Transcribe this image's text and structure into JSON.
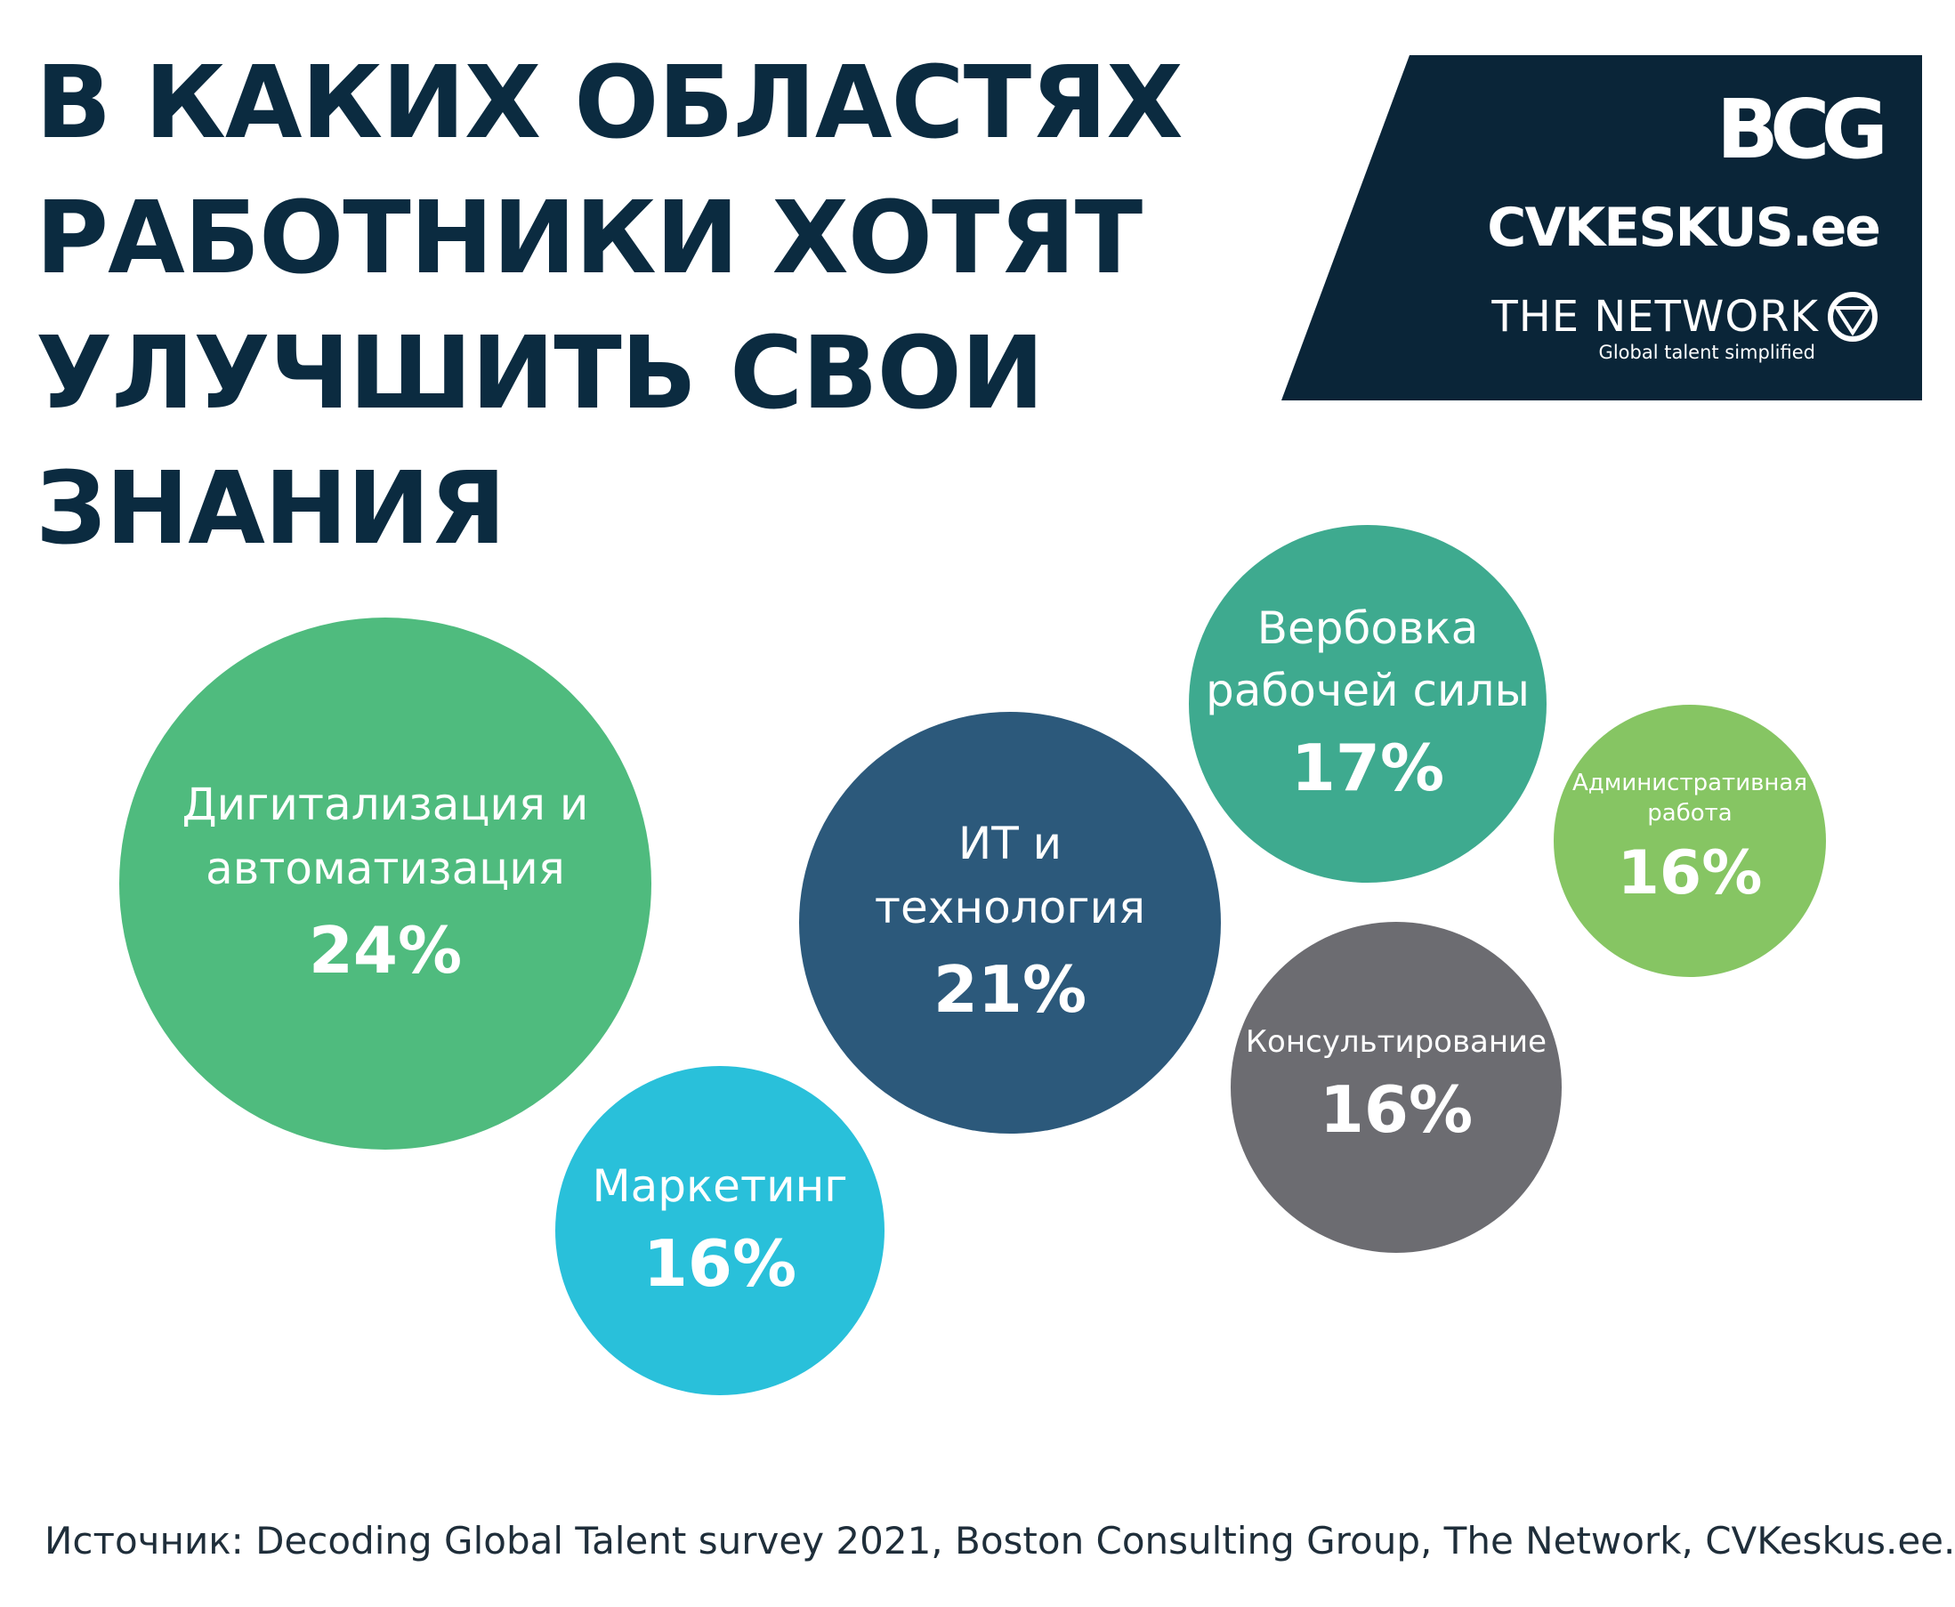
{
  "title_lines": [
    "В КАКИХ ОБЛАСТЯХ",
    "РАБОТНИКИ ХОТЯТ",
    "УЛУЧШИТЬ СВОИ",
    "ЗНАНИЯ"
  ],
  "brand": {
    "bcg": "BCG",
    "cvkeskus": "CVKESKUS.ee",
    "network_name": "THE NETWORK",
    "network_tagline": "Global talent simplified",
    "panel_color": "#0a2538"
  },
  "chart_data": {
    "type": "bubble",
    "title": "В КАКИХ ОБЛАСТЯХ РАБОТНИКИ ХОТЯТ УЛУЧШИТЬ СВОИ ЗНАНИЯ",
    "unit": "%",
    "items": [
      {
        "label": "Дигитализация и\nавтоматизация",
        "value": 24,
        "value_label": "24%",
        "color": "#4fbb7e"
      },
      {
        "label": "ИТ и\nтехнология",
        "value": 21,
        "value_label": "21%",
        "color": "#2c597b"
      },
      {
        "label": "Вербовка\nрабочей силы",
        "value": 17,
        "value_label": "17%",
        "color": "#3eaa8f"
      },
      {
        "label": "Административная\nработа",
        "value": 16,
        "value_label": "16%",
        "color": "#86c563"
      },
      {
        "label": "Консультирование",
        "value": 16,
        "value_label": "16%",
        "color": "#6c6c71"
      },
      {
        "label": "Маркетинг",
        "value": 16,
        "value_label": "16%",
        "color": "#29c0da"
      }
    ]
  },
  "source": "Источник: Decoding Global Talent survey 2021, Boston Consulting Group, The Network, CVKeskus.ee."
}
